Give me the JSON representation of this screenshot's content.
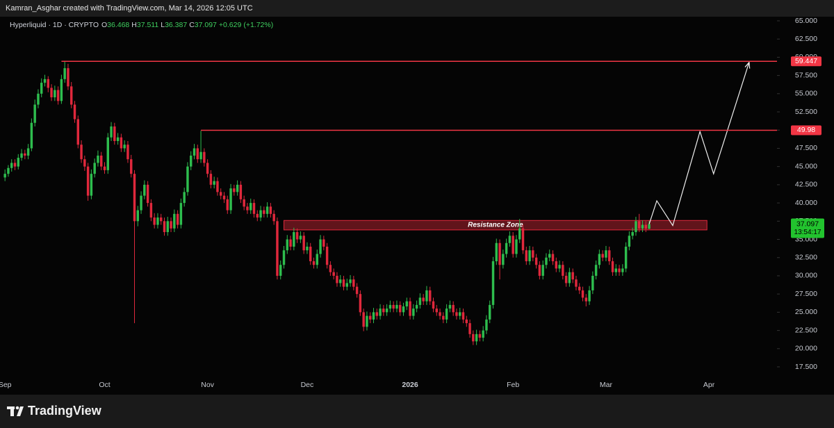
{
  "header": {
    "caption": "Kamran_Asghar created with TradingView.com, Mar 14, 2026 12:05 UTC"
  },
  "footer": {
    "brand": "TradingView"
  },
  "chart_data": {
    "type": "candlestick",
    "symbol": "Hyperliquid · 1D · CRYPTO",
    "ohlc_labels": [
      "O",
      "H",
      "L",
      "C"
    ],
    "change": {
      "value": 0.629,
      "label": "+0.629"
    },
    "change_pct": {
      "value": 1.72,
      "label": "(+1.72%)"
    },
    "countdown": "13:54:17",
    "up_color": "#2ebd4e",
    "down_color": "#e0283c",
    "grid": false,
    "ylim": [
      15.88,
      65.57
    ],
    "yticks": [
      {
        "value": 17.5,
        "label": "17.500"
      },
      {
        "value": 20,
        "label": "20.000"
      },
      {
        "value": 22.5,
        "label": "22.500"
      },
      {
        "value": 25,
        "label": "25.000"
      },
      {
        "value": 27.5,
        "label": "27.500"
      },
      {
        "value": 30,
        "label": "30.000"
      },
      {
        "value": 32.5,
        "label": "32.500"
      },
      {
        "value": 35,
        "label": "35.000"
      },
      {
        "value": 37.5,
        "label": "37.500"
      },
      {
        "value": 40,
        "label": "40.000"
      },
      {
        "value": 42.5,
        "label": "42.500"
      },
      {
        "value": 45,
        "label": "45.000"
      },
      {
        "value": 47.5,
        "label": "47.500"
      },
      {
        "value": 50,
        "label": "50.000"
      },
      {
        "value": 52.5,
        "label": "52.500"
      },
      {
        "value": 55,
        "label": "55.000"
      },
      {
        "value": 57.5,
        "label": "57.500"
      },
      {
        "value": 60,
        "label": "60.000"
      },
      {
        "value": 62.5,
        "label": "62.500"
      },
      {
        "value": 65,
        "label": "65.000"
      }
    ],
    "categories": [
      null,
      "Sep",
      null,
      null,
      null,
      null,
      null,
      null,
      null,
      null,
      null,
      null,
      null,
      null,
      null,
      null,
      null,
      null,
      null,
      null,
      null,
      null,
      null,
      null,
      null,
      null,
      null,
      null,
      null,
      null,
      null,
      "Oct",
      null,
      null,
      null,
      null,
      null,
      null,
      null,
      null,
      null,
      null,
      null,
      null,
      null,
      null,
      null,
      null,
      null,
      null,
      null,
      null,
      null,
      null,
      null,
      null,
      null,
      null,
      null,
      null,
      null,
      null,
      "Nov",
      null,
      null,
      null,
      null,
      null,
      null,
      null,
      null,
      null,
      null,
      null,
      null,
      null,
      null,
      null,
      null,
      null,
      null,
      null,
      null,
      null,
      null,
      null,
      null,
      null,
      null,
      null,
      null,
      null,
      "Dec",
      null,
      null,
      null,
      null,
      null,
      null,
      null,
      null,
      null,
      null,
      null,
      null,
      null,
      null,
      null,
      null,
      null,
      null,
      null,
      null,
      null,
      null,
      null,
      null,
      null,
      null,
      null,
      null,
      null,
      null,
      "2026",
      null,
      null,
      null,
      null,
      null,
      null,
      null,
      null,
      null,
      null,
      null,
      null,
      null,
      null,
      null,
      null,
      null,
      null,
      null,
      null,
      null,
      null,
      null,
      null,
      null,
      null,
      null,
      null,
      null,
      null,
      "Feb",
      null,
      null,
      null,
      null,
      null,
      null,
      null,
      null,
      null,
      null,
      null,
      null,
      null,
      null,
      null,
      null,
      null,
      null,
      null,
      null,
      null,
      null,
      null,
      null,
      null,
      null,
      null,
      "Mar",
      null,
      null,
      null,
      null,
      null,
      null,
      null,
      null,
      null,
      null,
      null,
      null,
      null,
      null,
      null,
      null,
      null,
      null,
      null,
      null,
      null,
      null,
      null,
      null,
      null,
      null,
      null,
      null,
      null,
      null,
      "Apr",
      null,
      null,
      null,
      null,
      null,
      null,
      null,
      null,
      null,
      null,
      null,
      null,
      null,
      null,
      null,
      null,
      null,
      null,
      null,
      null
    ],
    "values": [
      null,
      [
        43.5,
        44.6,
        43.0,
        44.0
      ],
      [
        44.0,
        45.2,
        43.6,
        44.8
      ],
      [
        44.8,
        46.0,
        44.3,
        45.5
      ],
      [
        45.5,
        46.0,
        44.5,
        45.0
      ],
      [
        45.0,
        46.7,
        44.6,
        46.2
      ],
      [
        46.2,
        47.4,
        45.8,
        46.8
      ],
      [
        46.8,
        47.3,
        46.0,
        46.5
      ],
      [
        46.5,
        48.1,
        46.0,
        47.5
      ],
      [
        47.5,
        51.6,
        47.1,
        51.0
      ],
      [
        51.0,
        54.2,
        50.5,
        53.5
      ],
      [
        53.5,
        55.6,
        53.0,
        55.0
      ],
      [
        55.0,
        57.1,
        54.5,
        56.5
      ],
      [
        56.5,
        57.6,
        56.0,
        57.0
      ],
      [
        57.0,
        57.4,
        55.2,
        55.8
      ],
      [
        55.8,
        56.3,
        54.0,
        54.5
      ],
      [
        54.5,
        56.1,
        54.0,
        55.5
      ],
      [
        55.5,
        56.0,
        53.5,
        54.0
      ],
      [
        54.0,
        57.6,
        53.6,
        57.0
      ],
      [
        57.0,
        59.4,
        56.5,
        58.5
      ],
      [
        58.5,
        59.1,
        55.5,
        56.0
      ],
      [
        56.0,
        56.6,
        53.0,
        53.5
      ],
      [
        53.5,
        54.0,
        51.0,
        51.5
      ],
      [
        51.5,
        52.0,
        47.5,
        48.0
      ],
      [
        48.0,
        48.6,
        45.5,
        46.0
      ],
      [
        46.0,
        46.5,
        44.4,
        45.0
      ],
      [
        45.0,
        45.5,
        40.3,
        41.0
      ],
      [
        41.0,
        44.6,
        40.5,
        44.0
      ],
      [
        44.0,
        46.1,
        43.5,
        45.5
      ],
      [
        45.5,
        47.2,
        45.0,
        46.5
      ],
      [
        46.5,
        47.0,
        44.5,
        45.0
      ],
      [
        45.0,
        45.6,
        44.0,
        44.5
      ],
      [
        44.5,
        49.6,
        44.0,
        49.0
      ],
      [
        49.0,
        51.1,
        48.5,
        50.5
      ],
      [
        50.5,
        51.0,
        48.0,
        48.5
      ],
      [
        48.5,
        49.6,
        48.0,
        49.0
      ],
      [
        49.0,
        49.5,
        47.0,
        47.5
      ],
      [
        47.5,
        48.6,
        47.0,
        48.0
      ],
      [
        48.0,
        48.5,
        45.5,
        46.0
      ],
      [
        46.0,
        46.6,
        43.5,
        44.0
      ],
      [
        44.0,
        44.5,
        23.5,
        37.5
      ],
      [
        37.5,
        39.6,
        36.8,
        39.0
      ],
      [
        39.0,
        41.6,
        38.5,
        41.0
      ],
      [
        41.0,
        43.1,
        40.5,
        42.5
      ],
      [
        42.5,
        43.0,
        39.5,
        40.0
      ],
      [
        40.0,
        40.5,
        37.5,
        38.0
      ],
      [
        38.0,
        38.6,
        36.5,
        37.0
      ],
      [
        37.0,
        38.6,
        36.5,
        38.0
      ],
      [
        38.0,
        38.5,
        37.0,
        37.5
      ],
      [
        37.5,
        38.0,
        35.5,
        36.0
      ],
      [
        36.0,
        38.1,
        35.5,
        37.5
      ],
      [
        37.5,
        38.0,
        36.0,
        36.5
      ],
      [
        36.5,
        39.1,
        36.0,
        38.5
      ],
      [
        38.5,
        39.0,
        36.5,
        37.0
      ],
      [
        37.0,
        40.6,
        36.5,
        40.0
      ],
      [
        40.0,
        42.1,
        39.5,
        41.5
      ],
      [
        41.5,
        45.6,
        41.0,
        45.0
      ],
      [
        45.0,
        47.1,
        44.5,
        46.5
      ],
      [
        46.5,
        48.1,
        46.0,
        47.5
      ],
      [
        47.5,
        48.0,
        45.5,
        46.0
      ],
      [
        46.0,
        49.9,
        45.5,
        47.0
      ],
      [
        47.0,
        47.5,
        45.0,
        45.5
      ],
      [
        45.5,
        46.0,
        43.5,
        44.0
      ],
      [
        44.0,
        44.5,
        42.0,
        42.5
      ],
      [
        42.5,
        43.6,
        42.0,
        43.0
      ],
      [
        43.0,
        43.5,
        41.0,
        41.5
      ],
      [
        41.5,
        42.0,
        40.5,
        41.0
      ],
      [
        41.0,
        41.5,
        40.0,
        40.5
      ],
      [
        40.5,
        41.0,
        38.5,
        39.0
      ],
      [
        39.0,
        42.6,
        38.5,
        42.0
      ],
      [
        42.0,
        42.5,
        41.0,
        41.5
      ],
      [
        41.5,
        43.1,
        41.0,
        42.5
      ],
      [
        42.5,
        43.0,
        40.0,
        40.5
      ],
      [
        40.5,
        41.0,
        39.0,
        39.5
      ],
      [
        39.5,
        40.0,
        38.5,
        39.0
      ],
      [
        39.0,
        40.6,
        38.5,
        40.0
      ],
      [
        40.0,
        40.5,
        38.0,
        38.5
      ],
      [
        38.5,
        39.0,
        37.5,
        38.0
      ],
      [
        38.0,
        39.6,
        37.5,
        39.0
      ],
      [
        39.0,
        39.5,
        38.0,
        38.5
      ],
      [
        38.5,
        40.1,
        38.0,
        39.5
      ],
      [
        39.5,
        40.0,
        38.0,
        38.5
      ],
      [
        38.5,
        39.0,
        37.0,
        37.5
      ],
      [
        37.5,
        38.0,
        29.5,
        30.0
      ],
      [
        30.0,
        32.1,
        29.5,
        31.5
      ],
      [
        31.5,
        34.1,
        31.0,
        33.5
      ],
      [
        33.5,
        35.6,
        33.0,
        35.0
      ],
      [
        35.0,
        35.5,
        33.5,
        34.0
      ],
      [
        34.0,
        36.6,
        33.5,
        36.0
      ],
      [
        36.0,
        36.5,
        34.5,
        35.0
      ],
      [
        35.0,
        36.1,
        34.5,
        35.5
      ],
      [
        35.5,
        36.0,
        33.0,
        33.5
      ],
      [
        33.5,
        34.6,
        33.0,
        34.0
      ],
      [
        34.0,
        34.5,
        31.5,
        32.0
      ],
      [
        32.0,
        32.5,
        31.0,
        31.5
      ],
      [
        31.5,
        33.6,
        31.0,
        33.0
      ],
      [
        33.0,
        35.6,
        32.5,
        35.0
      ],
      [
        35.0,
        35.5,
        33.5,
        34.0
      ],
      [
        34.0,
        34.5,
        31.0,
        31.5
      ],
      [
        31.5,
        32.0,
        30.0,
        30.5
      ],
      [
        30.5,
        31.0,
        29.5,
        30.0
      ],
      [
        30.0,
        30.5,
        28.5,
        29.0
      ],
      [
        29.0,
        30.1,
        28.5,
        29.5
      ],
      [
        29.5,
        30.0,
        28.0,
        28.5
      ],
      [
        28.5,
        29.6,
        28.0,
        29.0
      ],
      [
        29.0,
        30.1,
        28.5,
        29.5
      ],
      [
        29.5,
        30.0,
        28.0,
        28.5
      ],
      [
        28.5,
        29.0,
        27.0,
        27.5
      ],
      [
        27.5,
        28.0,
        24.5,
        25.0
      ],
      [
        25.0,
        25.5,
        22.4,
        23.0
      ],
      [
        23.0,
        25.1,
        22.5,
        24.5
      ],
      [
        24.5,
        25.0,
        23.5,
        24.0
      ],
      [
        24.0,
        25.6,
        23.5,
        25.0
      ],
      [
        25.0,
        25.5,
        24.0,
        24.5
      ],
      [
        24.5,
        26.1,
        24.0,
        25.5
      ],
      [
        25.5,
        26.0,
        24.5,
        25.0
      ],
      [
        25.0,
        26.1,
        24.5,
        25.5
      ],
      [
        25.5,
        26.6,
        25.0,
        26.0
      ],
      [
        26.0,
        26.5,
        25.0,
        25.5
      ],
      [
        25.5,
        26.6,
        25.0,
        26.0
      ],
      [
        26.0,
        26.5,
        24.5,
        25.0
      ],
      [
        25.0,
        26.3,
        24.5,
        25.8
      ],
      [
        25.8,
        27.0,
        25.3,
        26.5
      ],
      [
        26.5,
        27.0,
        24.0,
        24.5
      ],
      [
        24.5,
        26.1,
        24.0,
        25.5
      ],
      [
        25.5,
        26.6,
        25.0,
        26.0
      ],
      [
        26.0,
        27.6,
        25.5,
        27.0
      ],
      [
        27.0,
        27.5,
        26.0,
        26.5
      ],
      [
        26.5,
        28.6,
        26.0,
        28.0
      ],
      [
        28.0,
        28.5,
        26.0,
        26.5
      ],
      [
        26.5,
        27.0,
        25.0,
        25.5
      ],
      [
        25.5,
        26.0,
        24.5,
        25.0
      ],
      [
        25.0,
        25.5,
        24.0,
        24.5
      ],
      [
        24.5,
        25.0,
        23.5,
        24.0
      ],
      [
        24.0,
        26.1,
        23.5,
        25.5
      ],
      [
        25.5,
        26.6,
        25.0,
        26.0
      ],
      [
        26.0,
        26.5,
        24.5,
        25.0
      ],
      [
        25.0,
        25.5,
        24.0,
        24.5
      ],
      [
        24.5,
        25.6,
        24.0,
        25.0
      ],
      [
        25.0,
        25.5,
        23.5,
        24.0
      ],
      [
        24.0,
        24.5,
        23.0,
        23.5
      ],
      [
        23.5,
        24.0,
        21.5,
        22.0
      ],
      [
        22.0,
        22.5,
        20.5,
        21.0
      ],
      [
        21.0,
        22.6,
        20.5,
        22.0
      ],
      [
        22.0,
        22.5,
        21.0,
        21.5
      ],
      [
        21.5,
        23.1,
        21.0,
        22.5
      ],
      [
        22.5,
        24.6,
        22.0,
        24.0
      ],
      [
        24.0,
        26.6,
        23.5,
        26.0
      ],
      [
        26.0,
        32.6,
        25.5,
        32.0
      ],
      [
        32.0,
        35.1,
        31.5,
        34.5
      ],
      [
        34.5,
        35.0,
        29.5,
        31.5
      ],
      [
        31.5,
        33.6,
        31.0,
        33.0
      ],
      [
        33.0,
        35.1,
        32.5,
        34.5
      ],
      [
        34.5,
        36.1,
        34.0,
        35.5
      ],
      [
        35.5,
        36.0,
        32.5,
        33.0
      ],
      [
        33.0,
        35.6,
        32.5,
        35.0
      ],
      [
        35.0,
        37.8,
        34.5,
        36.5
      ],
      [
        36.5,
        37.0,
        33.0,
        33.5
      ],
      [
        33.5,
        34.0,
        31.5,
        32.0
      ],
      [
        32.0,
        34.1,
        31.5,
        33.5
      ],
      [
        33.5,
        34.0,
        32.0,
        32.5
      ],
      [
        32.5,
        33.0,
        31.0,
        31.5
      ],
      [
        31.5,
        32.0,
        29.5,
        30.0
      ],
      [
        30.0,
        32.1,
        29.5,
        31.5
      ],
      [
        31.5,
        33.1,
        31.0,
        32.5
      ],
      [
        32.5,
        33.6,
        32.0,
        33.0
      ],
      [
        33.0,
        33.5,
        31.5,
        32.0
      ],
      [
        32.0,
        32.5,
        30.5,
        31.0
      ],
      [
        31.0,
        32.1,
        30.5,
        31.5
      ],
      [
        31.5,
        32.0,
        29.5,
        30.0
      ],
      [
        30.0,
        30.5,
        28.5,
        29.0
      ],
      [
        29.0,
        31.1,
        28.5,
        30.5
      ],
      [
        30.5,
        31.0,
        29.0,
        29.5
      ],
      [
        29.5,
        30.0,
        28.0,
        28.5
      ],
      [
        28.5,
        29.0,
        27.5,
        28.0
      ],
      [
        28.0,
        28.5,
        26.5,
        27.0
      ],
      [
        27.0,
        27.5,
        25.8,
        26.5
      ],
      [
        26.5,
        28.6,
        26.0,
        28.0
      ],
      [
        28.0,
        30.6,
        27.5,
        30.0
      ],
      [
        30.0,
        32.1,
        29.5,
        31.5
      ],
      [
        31.5,
        33.6,
        31.0,
        33.0
      ],
      [
        33.0,
        33.5,
        32.0,
        32.5
      ],
      [
        32.5,
        34.1,
        32.0,
        33.5
      ],
      [
        33.5,
        34.0,
        31.5,
        32.0
      ],
      [
        32.0,
        32.5,
        30.0,
        30.5
      ],
      [
        30.5,
        31.6,
        30.0,
        31.0
      ],
      [
        31.0,
        31.5,
        30.0,
        30.5
      ],
      [
        30.5,
        31.6,
        30.0,
        31.0
      ],
      [
        31.0,
        34.6,
        30.5,
        34.0
      ],
      [
        34.0,
        36.1,
        33.5,
        35.5
      ],
      [
        35.5,
        36.6,
        35.0,
        36.0
      ],
      [
        36.0,
        38.1,
        35.5,
        37.5
      ],
      [
        37.5,
        38.5,
        36.0,
        36.5
      ],
      [
        36.5,
        37.6,
        36.0,
        37.0
      ],
      [
        37.0,
        37.5,
        36.0,
        36.468
      ],
      [
        36.468,
        37.511,
        36.387,
        37.097
      ],
      null,
      null,
      null,
      null,
      null,
      null,
      null,
      null,
      null,
      null,
      null,
      null,
      null,
      null,
      null,
      null,
      null,
      null,
      null,
      null,
      null,
      null,
      null,
      null,
      null,
      null,
      null,
      null,
      null,
      null,
      null,
      null,
      null,
      null,
      null,
      null,
      null,
      null
    ],
    "levels": [
      {
        "value": 59.447,
        "x": 18,
        "color": "#f23645"
      },
      {
        "value": 49.98,
        "x": 60,
        "color": "#f23645"
      }
    ],
    "zone": {
      "label": "Resistance Zone",
      "x": [
        85,
        212.4
      ],
      "y": [
        36.3,
        37.6
      ]
    },
    "projection": {
      "x": [
        195,
        197.3,
        202.1,
        210.3,
        214.4,
        225.1
      ],
      "y": [
        37.1,
        40.3,
        36.9,
        49.8,
        44.0,
        59.3
      ]
    }
  }
}
